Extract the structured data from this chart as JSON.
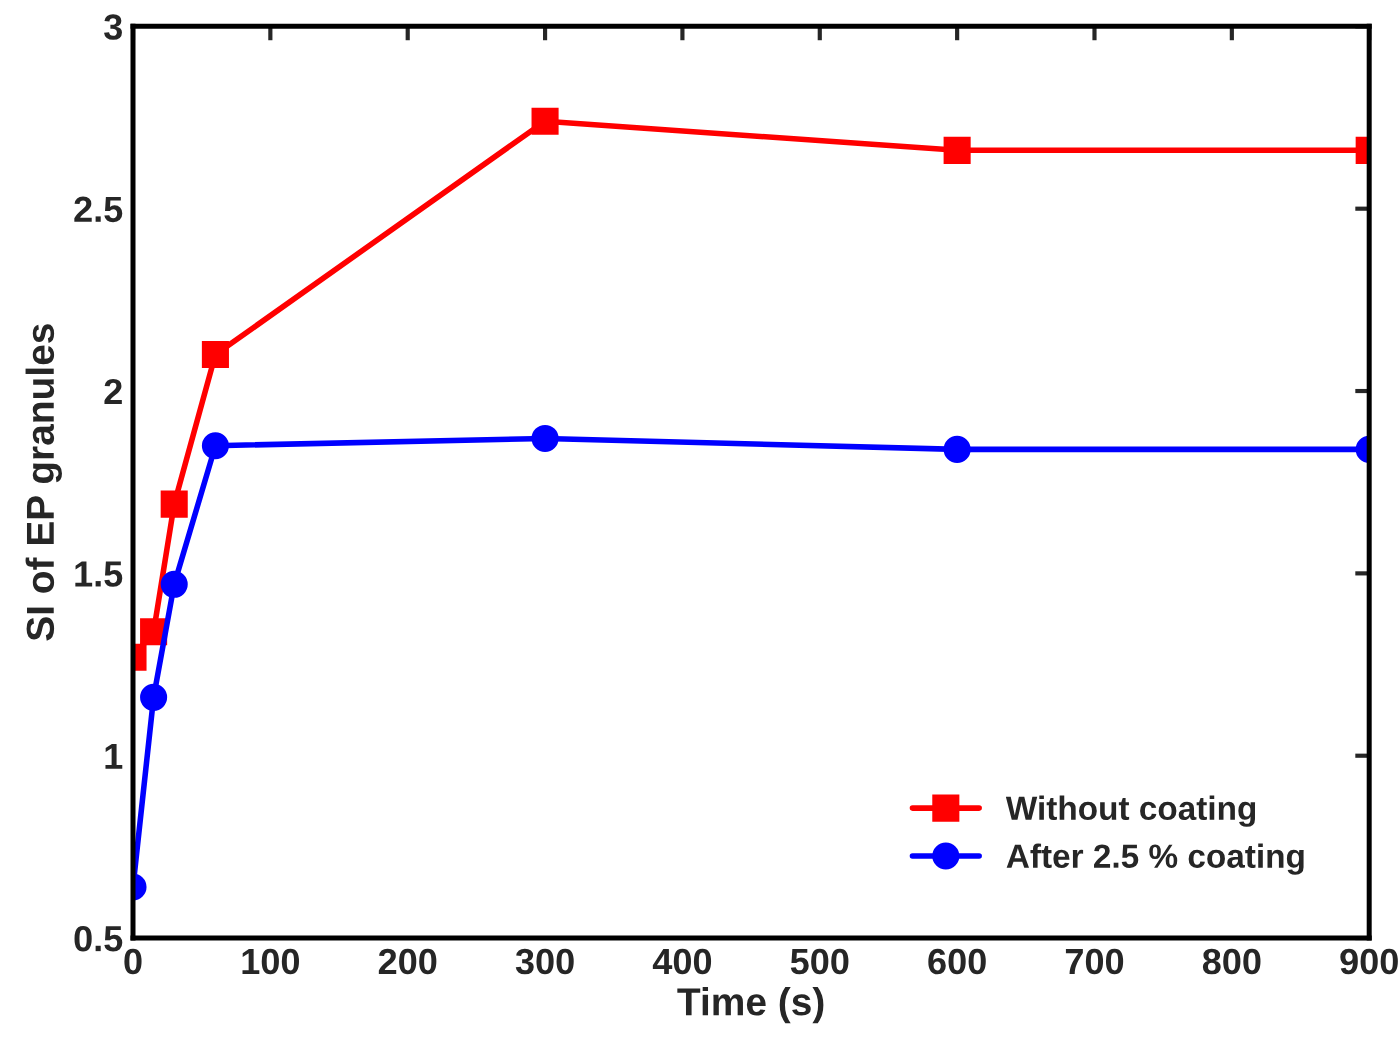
{
  "chart_data": {
    "type": "line",
    "xlabel": "Time (s)",
    "ylabel": "SI of EP granules",
    "xlim": [
      0,
      900
    ],
    "xticks": [
      0,
      100,
      200,
      300,
      400,
      500,
      600,
      700,
      800,
      900
    ],
    "ylim": [
      0.5,
      3
    ],
    "yticks": [
      0.5,
      1,
      1.5,
      2,
      2.5,
      3
    ],
    "legend": "bottom right",
    "grid": false,
    "series": [
      {
        "name": "Without coating",
        "color": "#ff0000",
        "marker": "square",
        "x": [
          0,
          15,
          30,
          60,
          300,
          600,
          900
        ],
        "values": [
          1.27,
          1.34,
          1.69,
          2.1,
          2.74,
          2.66,
          2.66
        ]
      },
      {
        "name": "After 2.5 % coating",
        "color": "#0000ff",
        "marker": "circle",
        "x": [
          0,
          15,
          30,
          60,
          300,
          600,
          900
        ],
        "values": [
          0.64,
          1.16,
          1.47,
          1.85,
          1.87,
          1.84,
          1.84
        ]
      }
    ]
  }
}
